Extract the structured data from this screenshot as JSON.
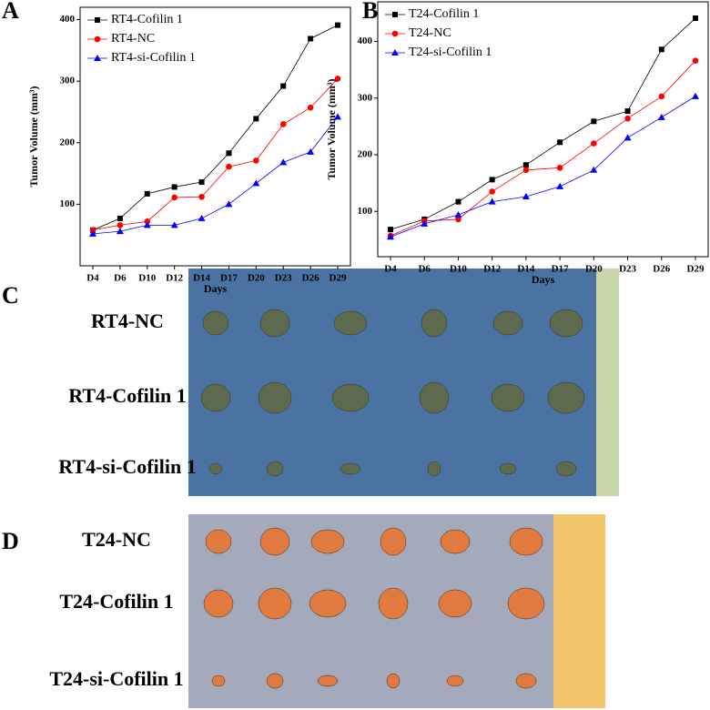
{
  "chart_data": [
    {
      "type": "line",
      "panel": "A",
      "ylabel": "Tumor Volume (mm³)",
      "xlabel": "Days",
      "categories": [
        "D4",
        "D6",
        "D10",
        "D12",
        "D14",
        "D17",
        "D20",
        "D23",
        "D26",
        "D29"
      ],
      "ylim": [
        0,
        420
      ],
      "yticks": [
        100,
        200,
        300,
        400
      ],
      "series": [
        {
          "name": "RT4-Cofilin 1",
          "color": "#000000",
          "marker": "square",
          "values": [
            58,
            77,
            117,
            128,
            136,
            183,
            239,
            292,
            369,
            391
          ]
        },
        {
          "name": "RT4-NC",
          "color": "#ff0000",
          "marker": "circle",
          "values": [
            58,
            66,
            72,
            111,
            112,
            161,
            171,
            230,
            257,
            304
          ]
        },
        {
          "name": "RT4-si-Cofilin 1",
          "color": "#0000ff",
          "marker": "triangle",
          "values": [
            52,
            56,
            66,
            66,
            77,
            100,
            134,
            168,
            185,
            242
          ]
        }
      ]
    },
    {
      "type": "line",
      "panel": "B",
      "ylabel": "Tumor Volume (mm³)",
      "xlabel": "Days",
      "categories": [
        "D4",
        "D6",
        "D10",
        "D12",
        "D14",
        "D17",
        "D20",
        "D23",
        "D26",
        "D29"
      ],
      "ylim": [
        20,
        470
      ],
      "yticks": [
        100,
        200,
        300,
        400
      ],
      "series": [
        {
          "name": "T24-Cofilin 1",
          "color": "#000000",
          "marker": "square",
          "values": [
            68,
            86,
            117,
            156,
            182,
            222,
            259,
            277,
            386,
            441
          ]
        },
        {
          "name": "T24-NC",
          "color": "#ff0000",
          "marker": "circle",
          "values": [
            57,
            83,
            86,
            135,
            173,
            177,
            220,
            264,
            303,
            366
          ]
        },
        {
          "name": "T24-si-Cofilin 1",
          "color": "#0000ff",
          "marker": "triangle",
          "values": [
            55,
            78,
            94,
            117,
            126,
            144,
            173,
            230,
            266,
            303
          ]
        }
      ]
    }
  ],
  "photos": [
    {
      "panel": "C",
      "rows": [
        "RT4-NC",
        "RT4-Cofilin 1",
        "RT4-si-Cofilin 1"
      ]
    },
    {
      "panel": "D",
      "rows": [
        "T24-NC",
        "T24-Cofilin 1",
        "T24-si-Cofilin 1"
      ]
    }
  ]
}
